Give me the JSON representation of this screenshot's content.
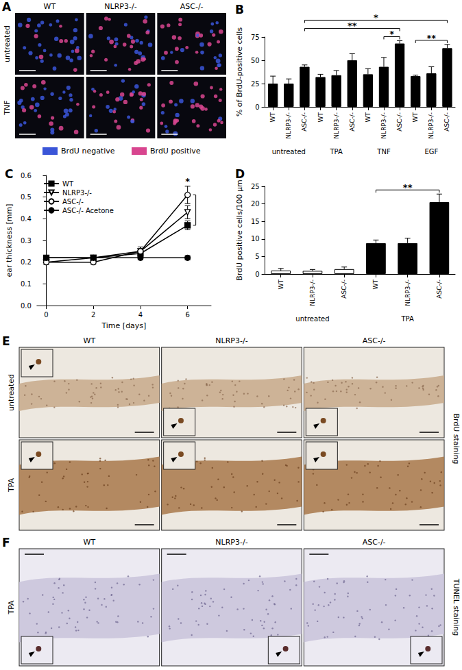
{
  "chart_data": [
    {
      "panel": "B",
      "type": "bar",
      "categories": [
        "WT",
        "NLRP3-/-",
        "ASC-/-",
        "WT",
        "NLRP3-/-",
        "ASC-/-",
        "WT",
        "NLRP3-/-",
        "ASC-/-",
        "WT",
        "NLRP3-/-",
        "ASC-/-"
      ],
      "groups": [
        "untreated",
        "TPA",
        "TNF",
        "EGF"
      ],
      "values": [
        25,
        25,
        43,
        32,
        34,
        50,
        35,
        43,
        68,
        33,
        36,
        63
      ],
      "errors": [
        8,
        5,
        2,
        3,
        5,
        7,
        6,
        10,
        3,
        1,
        7,
        4
      ],
      "color": "#000000",
      "y_label": "% of BrdU-positive cells",
      "ylim": [
        0,
        75
      ],
      "yticks": [
        0,
        25,
        50,
        75
      ],
      "grid": false,
      "significance": [
        {
          "between": [
            7,
            8
          ],
          "label": "*"
        },
        {
          "between": [
            9,
            11
          ],
          "label": "**"
        },
        {
          "between": [
            2,
            8
          ],
          "label": "**"
        },
        {
          "between": [
            2,
            11
          ],
          "label": "*"
        }
      ]
    },
    {
      "panel": "C",
      "type": "line",
      "x": [
        0,
        2,
        4,
        6
      ],
      "x_label": "Time [days]",
      "y_label": "ear thickness [mm]",
      "xlim": [
        -0.4,
        7
      ],
      "xticks": [
        0,
        2,
        4,
        6
      ],
      "ylim": [
        0,
        0.6
      ],
      "yticks": [
        {
          "value": 0,
          "label": "0.0"
        },
        {
          "value": 0.1,
          "label": "0.1"
        },
        {
          "value": 0.2,
          "label": "0.2"
        },
        {
          "value": 0.3,
          "label": "0.3"
        },
        {
          "value": 0.4,
          "label": "0.4"
        },
        {
          "value": 0.5,
          "label": "0.5"
        },
        {
          "value": 0.6,
          "label": "0.6"
        }
      ],
      "grid": false,
      "legend": "upper left",
      "series": [
        {
          "name": "WT",
          "color": "#000000",
          "marker": "square",
          "line_style": "solid",
          "values": [
            0.22,
            0.22,
            0.24,
            0.37
          ],
          "errors": [
            0.01,
            0.01,
            0.02,
            0.02
          ]
        },
        {
          "name": "NLRP3-/-",
          "color": "#000000",
          "marker": "open-triangle-down",
          "line_style": "solid",
          "values": [
            0.2,
            0.22,
            0.25,
            0.43
          ],
          "errors": [
            0.01,
            0.01,
            0.02,
            0.03
          ]
        },
        {
          "name": "ASC-/-",
          "color": "#000000",
          "marker": "open-circle",
          "line_style": "solid",
          "values": [
            0.2,
            0.2,
            0.25,
            0.51
          ],
          "errors": [
            0.01,
            0.01,
            0.02,
            0.04
          ]
        },
        {
          "name": "ASC-/- Acetone",
          "color": "#000000",
          "marker": "circle",
          "line_style": "solid",
          "values": [
            0.22,
            0.22,
            0.22,
            0.22
          ],
          "errors": [
            0.01,
            0.01,
            0.01,
            0.01
          ]
        }
      ],
      "significance": [
        {
          "x": 6,
          "between": [
            "WT",
            "ASC-/-"
          ],
          "label": "*"
        }
      ]
    },
    {
      "panel": "D",
      "type": "bar",
      "categories": [
        "WT",
        "NLRP3-/-",
        "ASC-/-",
        "WT",
        "NLRP3-/-",
        "ASC-/-"
      ],
      "groups": [
        "untreated",
        "TPA"
      ],
      "values": [
        1,
        0.9,
        1.4,
        8.8,
        8.8,
        20.5
      ],
      "errors": [
        0.6,
        0.4,
        0.6,
        0.9,
        1.4,
        2.3
      ],
      "colors": [
        "#ffffff",
        "#ffffff",
        "#ffffff",
        "#000000",
        "#000000",
        "#000000"
      ],
      "y_label": "BrdU positive cells/100 µm",
      "ylim": [
        0,
        25
      ],
      "yticks": [
        0,
        5,
        10,
        15,
        20,
        25
      ],
      "grid": false,
      "significance": [
        {
          "between": [
            3,
            5
          ],
          "label": "**"
        }
      ]
    }
  ],
  "image_panels": [
    {
      "panel": "A",
      "columns": [
        "WT",
        "NLRP3-/-",
        "ASC-/-"
      ],
      "rows": [
        "untreated",
        "TNF"
      ],
      "legend": [
        {
          "label": "BrdU negative",
          "color": "#3a55d8"
        },
        {
          "label": "BrdU positive",
          "color": "#d8458f"
        }
      ]
    },
    {
      "panel": "E",
      "columns": [
        "WT",
        "NLRP3-/-",
        "ASC-/-"
      ],
      "rows": [
        "untreated",
        "TPA"
      ],
      "side_label": "BrdU staining"
    },
    {
      "panel": "F",
      "columns": [
        "WT",
        "NLRP3-/-",
        "ASC-/-"
      ],
      "rows": [
        "TPA"
      ],
      "side_label": "TUNEL staining"
    }
  ]
}
